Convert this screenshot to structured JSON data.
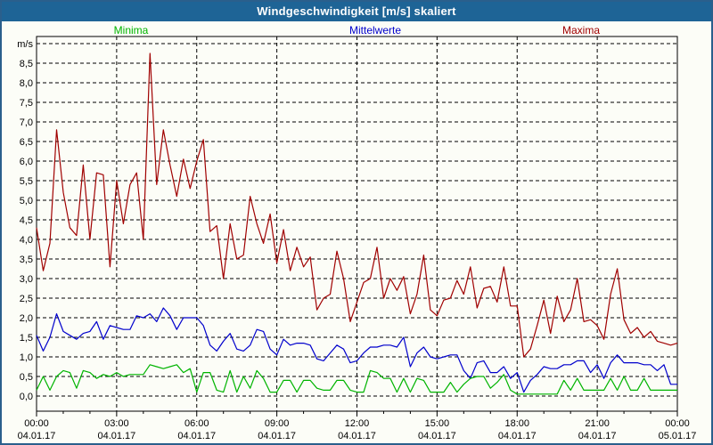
{
  "window": {
    "title": "Windgeschwindigkeit [m/s] skaliert"
  },
  "colors": {
    "title_bar": "#1e6496",
    "frame_border": "#2a5f8c",
    "background": "#fcfdf7",
    "grid": "#000000",
    "minima": "#00b400",
    "mittelwerte": "#0000cc",
    "maxima": "#a00000"
  },
  "legend": [
    {
      "label": "Minima",
      "color": "#00b400"
    },
    {
      "label": "Mittelwerte",
      "color": "#0000cc"
    },
    {
      "label": "Maxima",
      "color": "#a00000"
    }
  ],
  "chart_data": {
    "type": "line",
    "title": "Windgeschwindigkeit [m/s] skaliert",
    "y_unit_label": "m/s",
    "ylim": [
      0,
      9
    ],
    "y_tick_step": 0.5,
    "y_tick_labels": [
      "0,0",
      "0,5",
      "1,0",
      "1,5",
      "2,0",
      "2,5",
      "3,0",
      "3,5",
      "4,0",
      "4,5",
      "5,0",
      "5,5",
      "6,0",
      "6,5",
      "7,0",
      "7,5",
      "8,0",
      "8,5"
    ],
    "x_hours_span": 24,
    "x_sample_step_hours": 0.25,
    "x_major_tick_hours": 3,
    "x_minor_tick_hours": 1,
    "grid": true,
    "legend_position": "top",
    "x_ticks": [
      {
        "time": "00:00",
        "date": "04.01.17"
      },
      {
        "time": "03:00",
        "date": "04.01.17"
      },
      {
        "time": "06:00",
        "date": "04.01.17"
      },
      {
        "time": "09:00",
        "date": "04.01.17"
      },
      {
        "time": "12:00",
        "date": "04.01.17"
      },
      {
        "time": "15:00",
        "date": "04.01.17"
      },
      {
        "time": "18:00",
        "date": "04.01.17"
      },
      {
        "time": "21:00",
        "date": "04.01.17"
      },
      {
        "time": "00:00",
        "date": "05.01.17"
      }
    ],
    "series": [
      {
        "name": "Maxima",
        "color": "#a00000",
        "values": [
          4.3,
          3.2,
          3.9,
          6.8,
          5.2,
          4.3,
          4.1,
          5.9,
          4.0,
          5.7,
          5.65,
          3.3,
          5.5,
          4.4,
          5.4,
          5.7,
          4.0,
          8.75,
          5.4,
          6.8,
          5.9,
          5.1,
          6.05,
          5.3,
          6.0,
          6.55,
          4.2,
          4.35,
          3.0,
          4.4,
          3.5,
          3.6,
          5.1,
          4.4,
          3.9,
          4.65,
          3.4,
          4.25,
          3.2,
          3.8,
          3.3,
          3.55,
          2.2,
          2.5,
          2.6,
          3.7,
          3.0,
          1.9,
          2.4,
          2.9,
          3.0,
          3.8,
          2.5,
          3.0,
          2.7,
          3.05,
          2.1,
          2.6,
          3.6,
          2.2,
          2.05,
          2.45,
          2.5,
          2.95,
          2.6,
          3.3,
          2.25,
          2.75,
          2.8,
          2.4,
          3.3,
          2.3,
          2.3,
          1.0,
          1.2,
          1.8,
          2.45,
          1.6,
          2.55,
          1.9,
          2.2,
          3.0,
          1.9,
          1.95,
          1.8,
          1.45,
          2.6,
          3.25,
          1.95,
          1.6,
          1.75,
          1.5,
          1.65,
          1.4,
          1.35,
          1.3,
          1.35
        ]
      },
      {
        "name": "Mittelwerte",
        "color": "#0000cc",
        "values": [
          1.55,
          1.15,
          1.5,
          2.1,
          1.65,
          1.55,
          1.45,
          1.6,
          1.65,
          1.9,
          1.45,
          1.8,
          1.75,
          1.7,
          1.7,
          2.05,
          2.0,
          2.1,
          1.9,
          2.25,
          2.05,
          1.7,
          2.0,
          2.0,
          2.0,
          1.8,
          1.3,
          1.15,
          1.4,
          1.6,
          1.2,
          1.15,
          1.3,
          1.7,
          1.65,
          1.2,
          1.05,
          1.45,
          1.3,
          1.35,
          1.35,
          1.3,
          0.95,
          0.9,
          1.1,
          1.3,
          1.2,
          0.85,
          0.9,
          1.1,
          1.25,
          1.25,
          1.3,
          1.3,
          1.25,
          1.5,
          0.75,
          1.1,
          1.25,
          1.0,
          0.95,
          1.0,
          1.05,
          1.05,
          0.65,
          0.45,
          0.85,
          0.9,
          0.6,
          0.6,
          0.75,
          0.45,
          0.6,
          0.1,
          0.4,
          0.55,
          0.75,
          0.7,
          0.7,
          0.8,
          0.8,
          0.9,
          0.9,
          0.6,
          0.8,
          0.45,
          0.85,
          1.05,
          0.85,
          0.85,
          0.85,
          0.8,
          0.8,
          0.65,
          0.8,
          0.3,
          0.3
        ]
      },
      {
        "name": "Minima",
        "color": "#00b400",
        "values": [
          0.15,
          0.5,
          0.15,
          0.5,
          0.65,
          0.6,
          0.2,
          0.65,
          0.6,
          0.45,
          0.55,
          0.5,
          0.6,
          0.5,
          0.55,
          0.55,
          0.55,
          0.8,
          0.75,
          0.7,
          0.75,
          0.8,
          0.6,
          0.7,
          0.1,
          0.6,
          0.6,
          0.15,
          0.1,
          0.65,
          0.1,
          0.5,
          0.2,
          0.65,
          0.45,
          0.1,
          0.1,
          0.4,
          0.4,
          0.1,
          0.4,
          0.4,
          0.2,
          0.15,
          0.15,
          0.4,
          0.4,
          0.15,
          0.1,
          0.1,
          0.65,
          0.6,
          0.45,
          0.45,
          0.1,
          0.45,
          0.1,
          0.45,
          0.4,
          0.1,
          0.1,
          0.1,
          0.35,
          0.1,
          0.3,
          0.45,
          0.5,
          0.5,
          0.2,
          0.35,
          0.55,
          0.15,
          0.05,
          0.05,
          0.05,
          0.05,
          0.05,
          0.05,
          0.05,
          0.4,
          0.15,
          0.45,
          0.15,
          0.15,
          0.15,
          0.15,
          0.45,
          0.15,
          0.5,
          0.15,
          0.15,
          0.45,
          0.15,
          0.15,
          0.15,
          0.15,
          0.15
        ]
      }
    ]
  }
}
